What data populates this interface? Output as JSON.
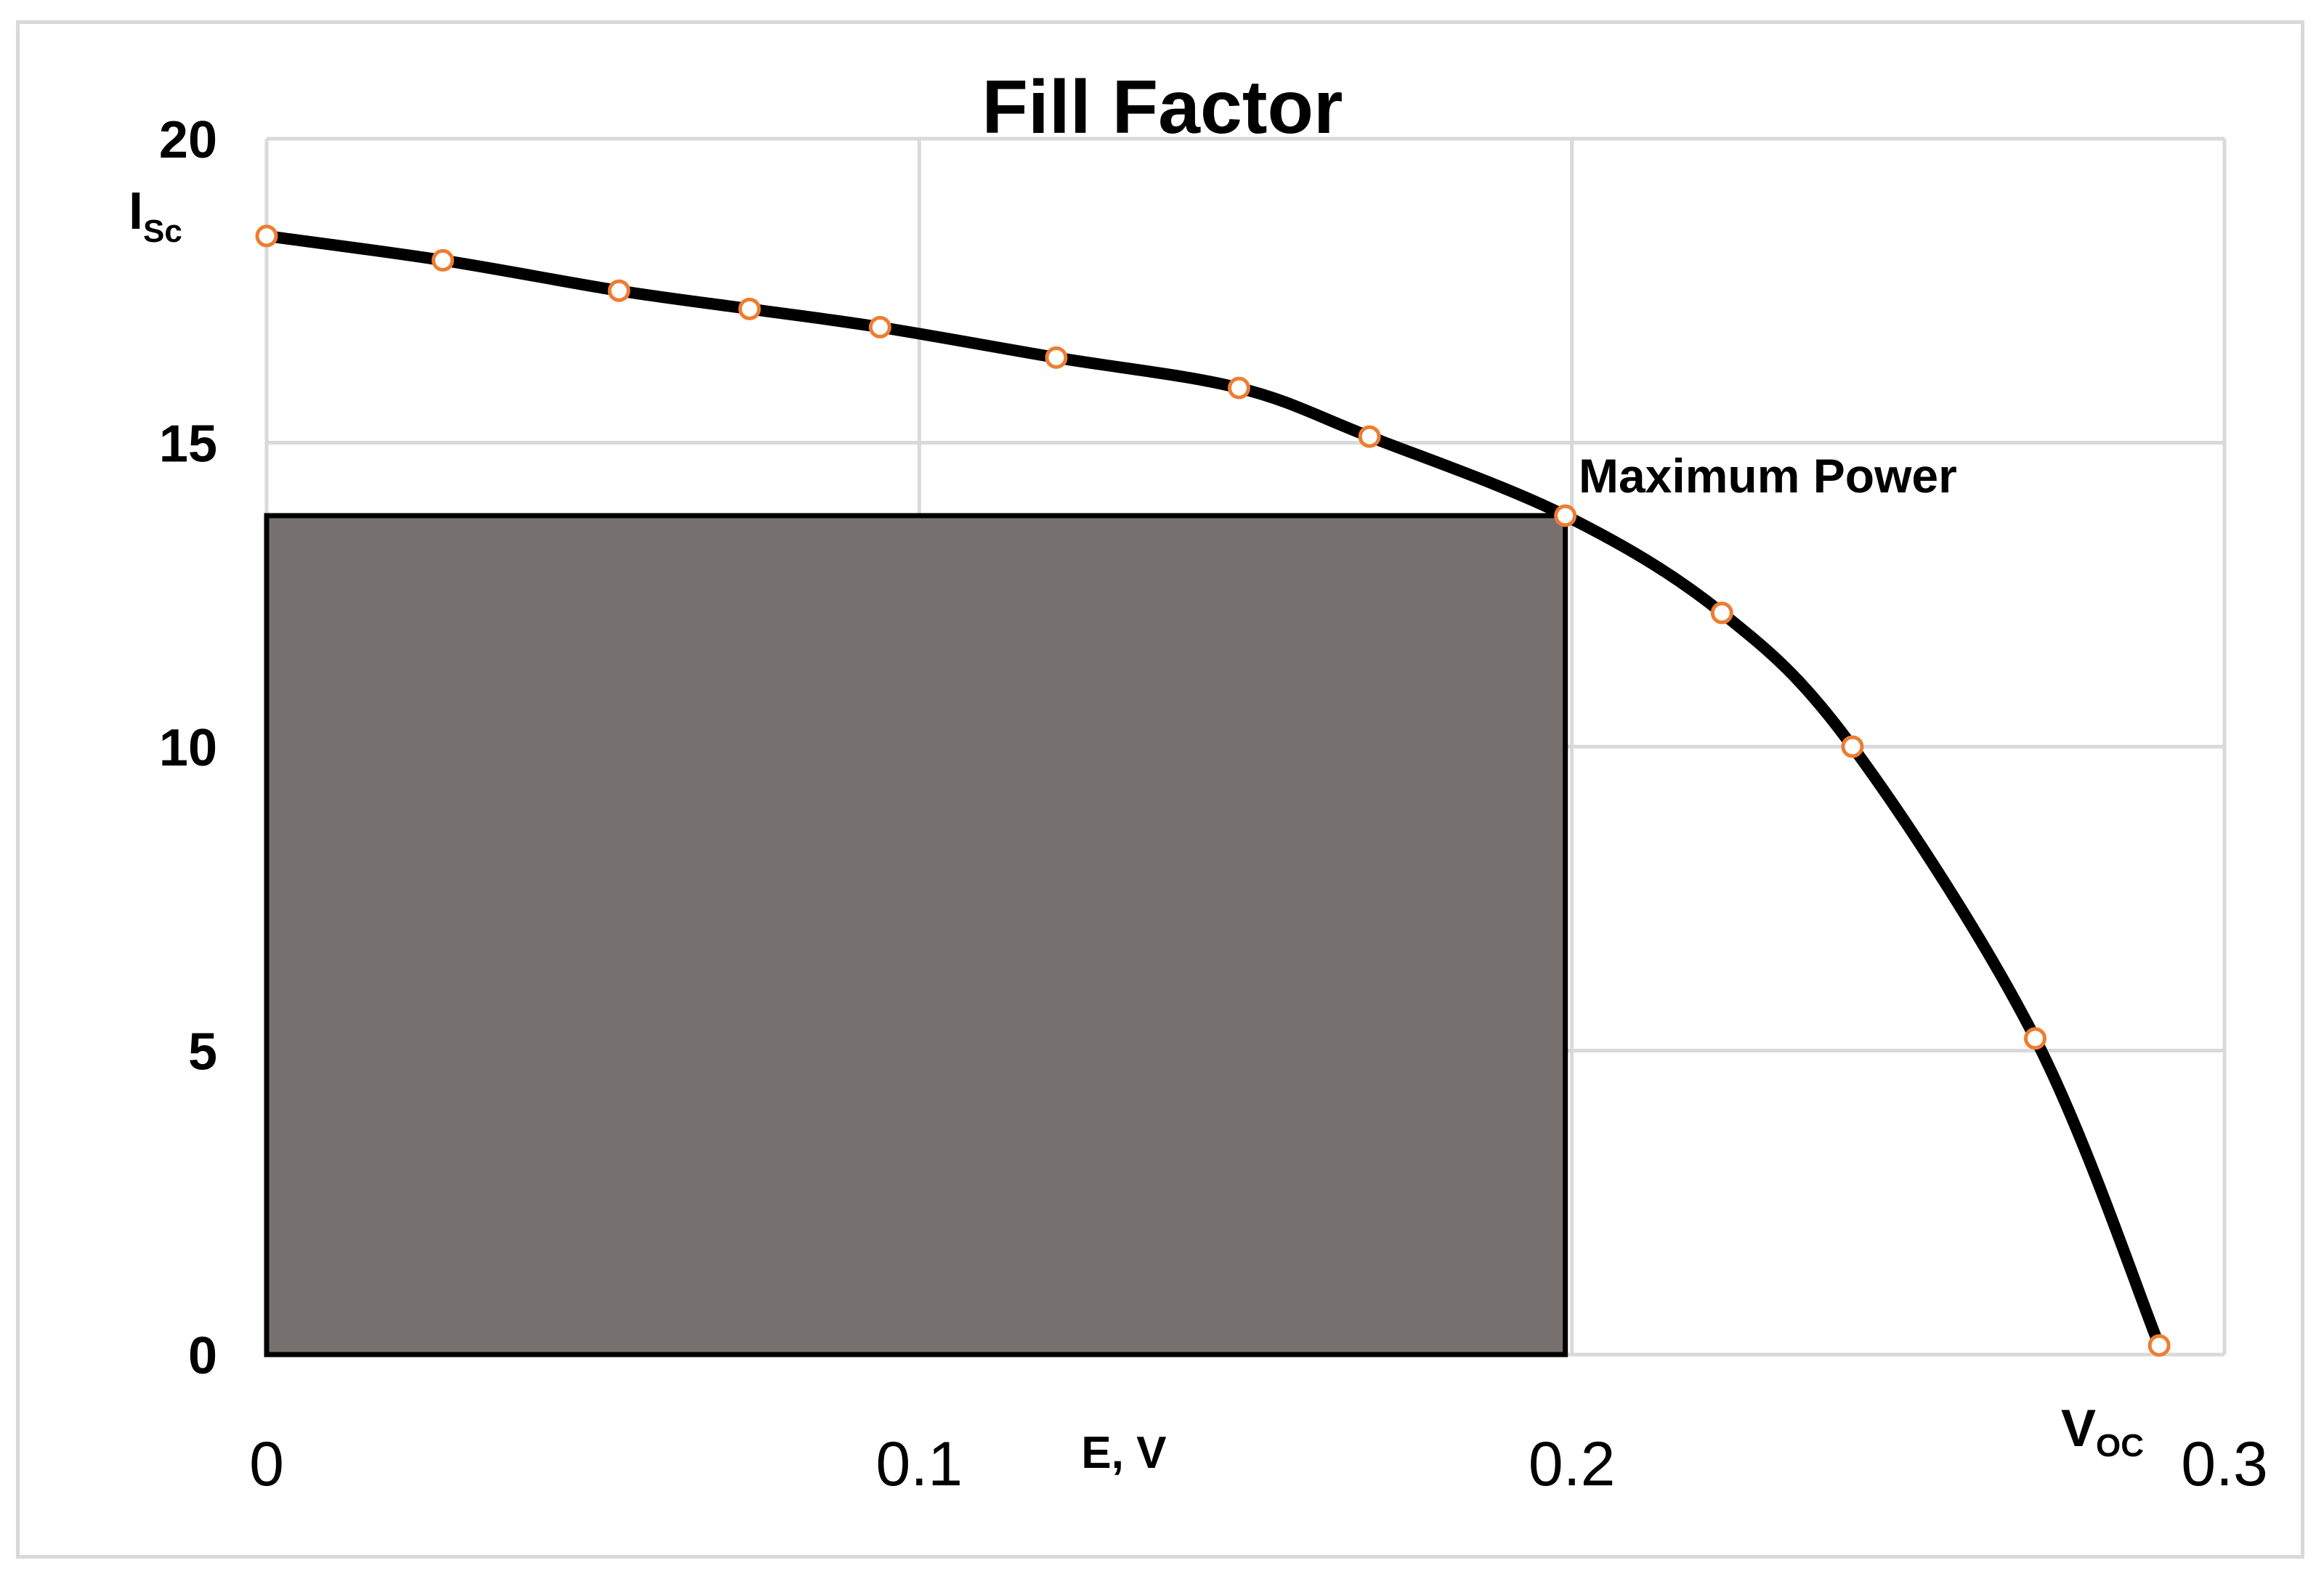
{
  "chart_data": {
    "type": "line",
    "title": "Fill Factor",
    "xlabel": "E, V",
    "ylabel": "",
    "xlim": [
      0,
      0.3
    ],
    "ylim": [
      0,
      20
    ],
    "x_ticks": [
      "0",
      "0.1",
      "0.2",
      "0.3"
    ],
    "y_ticks": [
      "0",
      "5",
      "10",
      "15",
      "20"
    ],
    "grid": true,
    "series": [
      {
        "points": [
          {
            "x": 0.0,
            "y": 18.4
          },
          {
            "x": 0.027,
            "y": 18.0
          },
          {
            "x": 0.054,
            "y": 17.5
          },
          {
            "x": 0.074,
            "y": 17.2
          },
          {
            "x": 0.094,
            "y": 16.9
          },
          {
            "x": 0.121,
            "y": 16.4
          },
          {
            "x": 0.149,
            "y": 15.9
          },
          {
            "x": 0.169,
            "y": 15.1
          },
          {
            "x": 0.199,
            "y": 13.8
          },
          {
            "x": 0.223,
            "y": 12.2
          },
          {
            "x": 0.243,
            "y": 10.0
          },
          {
            "x": 0.271,
            "y": 5.2
          },
          {
            "x": 0.29,
            "y": 0.15
          }
        ],
        "line_color": "#000000",
        "marker_color": "#ed7d31"
      }
    ],
    "rectangle": {
      "x0": 0,
      "x1": 0.199,
      "y0": 0,
      "y1": 13.8,
      "fill": "#76716e"
    },
    "annotations": {
      "max_power": "Maximum Power",
      "isc_main": "I",
      "isc_sub": "Sc",
      "voc_main": "V",
      "voc_sub": "OC"
    }
  }
}
